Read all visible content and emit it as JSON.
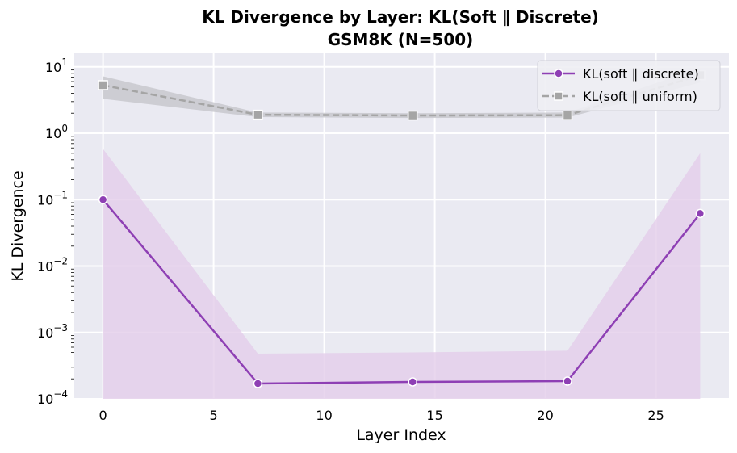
{
  "chart_data": {
    "type": "line",
    "title": "KL Divergence by Layer: KL(Soft ∥ Discrete)",
    "subtitle": "GSM8K (N=500)",
    "xlabel": "Layer Index",
    "ylabel": "KL Divergence",
    "xlim": [
      -1.3,
      28.3
    ],
    "ylim": [
      0.0001,
      16
    ],
    "yscale": "log",
    "grid": true,
    "legend_position": "top-right",
    "x_ticks": [
      0,
      5,
      10,
      15,
      20,
      25
    ],
    "x_tick_labels": [
      "0",
      "5",
      "10",
      "15",
      "20",
      "25"
    ],
    "y_ticks": [
      0.0001,
      0.001,
      0.01,
      0.1,
      1,
      10
    ],
    "y_tick_bases": [
      "10",
      "10",
      "10",
      "10",
      "10",
      "10"
    ],
    "y_tick_exps": [
      "−4",
      "−3",
      "−2",
      "−1",
      "0",
      "1"
    ],
    "series": [
      {
        "name": "KL(soft ∥ discrete)",
        "color": "#8e3fb4",
        "band_color": "#e3cdea",
        "marker": "circle",
        "line_style": "solid",
        "x": [
          0,
          7,
          14,
          21,
          27
        ],
        "values": [
          0.1,
          0.00017,
          0.00018,
          0.000185,
          0.062
        ],
        "band_upper": [
          0.58,
          0.00048,
          0.0005,
          0.00053,
          0.5
        ],
        "band_lower": [
          0.0001,
          0.0001,
          0.0001,
          0.0001,
          0.0001
        ]
      },
      {
        "name": "KL(soft ∥ uniform)",
        "color": "#a5a5a5",
        "band_color": "#c8c8ce",
        "marker": "square",
        "line_style": "dashed",
        "x": [
          0,
          7,
          14,
          21,
          27
        ],
        "values": [
          5.3,
          1.9,
          1.85,
          1.87,
          7.5
        ],
        "band_upper": [
          7.2,
          2.05,
          2.0,
          2.05,
          9.5
        ],
        "band_lower": [
          3.3,
          1.75,
          1.7,
          1.72,
          5.8
        ]
      }
    ]
  }
}
